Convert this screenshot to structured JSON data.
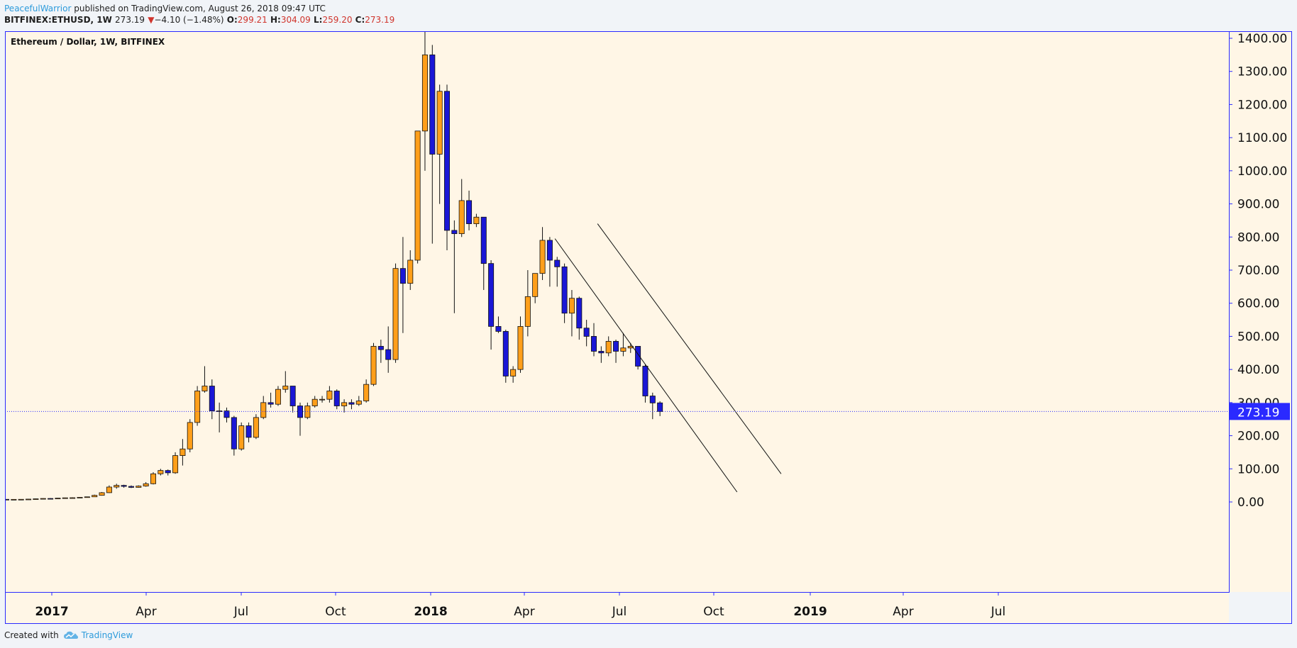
{
  "header": {
    "author": "PeacefulWarrior",
    "published_text": "published on TradingView.com, August 26, 2018 09:47 UTC",
    "symbol": "BITFINEX:ETHUSD, 1W",
    "last": "273.19",
    "change_arrow": "▼",
    "change": "−4.10 (−1.48%)",
    "o_label": "O:",
    "o": "299.21",
    "h_label": "H:",
    "h": "304.09",
    "l_label": "L:",
    "l": "259.20",
    "c_label": "C:",
    "c": "273.19"
  },
  "footer": {
    "created_with": "Created with",
    "brand": "TradingView"
  },
  "chart_data": {
    "type": "candlestick",
    "title": "Ethereum / Dollar, 1W, BITFINEX",
    "ylim": [
      -10,
      1425
    ],
    "y_ticks": [
      0,
      100,
      200,
      300,
      400,
      500,
      600,
      700,
      800,
      900,
      1000,
      1100,
      1200,
      1300,
      1400
    ],
    "y_tick_labels": [
      "0.00",
      "100.00",
      "200.00",
      "300.00",
      "400.00",
      "500.00",
      "600.00",
      "700.00",
      "800.00",
      "900.00",
      "1000.00",
      "1100.00",
      "1200.00",
      "1300.00",
      "1400.00"
    ],
    "x_labels": [
      "2017",
      "Apr",
      "Jul",
      "Oct",
      "2018",
      "Apr",
      "Jul",
      "Oct",
      "2019",
      "Apr",
      "Jul"
    ],
    "x_labels_bold": [
      "2017",
      "2018",
      "2019"
    ],
    "last_price": 273.19,
    "last_price_label": "273.19",
    "colors": {
      "up": "#ff9f1a",
      "down": "#1a17d6",
      "background": "#fff6e6",
      "axis": "#2a2aff",
      "price_line": "#2a2aff"
    },
    "candles": [
      {
        "o": 8,
        "h": 8.5,
        "l": 7,
        "c": 7.5
      },
      {
        "o": 7.5,
        "h": 8,
        "l": 7,
        "c": 7.8
      },
      {
        "o": 7.8,
        "h": 8.5,
        "l": 7.5,
        "c": 8
      },
      {
        "o": 8,
        "h": 9,
        "l": 8,
        "c": 8.6
      },
      {
        "o": 8.6,
        "h": 10,
        "l": 8.3,
        "c": 9.5
      },
      {
        "o": 9.5,
        "h": 11,
        "l": 9.3,
        "c": 10.5
      },
      {
        "o": 10.5,
        "h": 11.5,
        "l": 9,
        "c": 10
      },
      {
        "o": 10,
        "h": 12,
        "l": 9.8,
        "c": 11.5
      },
      {
        "o": 11.5,
        "h": 13,
        "l": 11,
        "c": 12.5
      },
      {
        "o": 12.5,
        "h": 14,
        "l": 12,
        "c": 12.8
      },
      {
        "o": 12.8,
        "h": 15,
        "l": 12.5,
        "c": 14
      },
      {
        "o": 14,
        "h": 16,
        "l": 13.5,
        "c": 15.5
      },
      {
        "o": 15.5,
        "h": 22,
        "l": 15,
        "c": 20
      },
      {
        "o": 20,
        "h": 30,
        "l": 19,
        "c": 28
      },
      {
        "o": 28,
        "h": 50,
        "l": 27,
        "c": 45
      },
      {
        "o": 45,
        "h": 55,
        "l": 40,
        "c": 50
      },
      {
        "o": 50,
        "h": 52,
        "l": 43,
        "c": 47
      },
      {
        "o": 47,
        "h": 50,
        "l": 42,
        "c": 44
      },
      {
        "o": 44,
        "h": 50,
        "l": 43,
        "c": 48
      },
      {
        "o": 48,
        "h": 60,
        "l": 46,
        "c": 55
      },
      {
        "o": 55,
        "h": 90,
        "l": 53,
        "c": 85
      },
      {
        "o": 85,
        "h": 100,
        "l": 80,
        "c": 95
      },
      {
        "o": 95,
        "h": 98,
        "l": 80,
        "c": 88
      },
      {
        "o": 88,
        "h": 150,
        "l": 85,
        "c": 140
      },
      {
        "o": 140,
        "h": 190,
        "l": 110,
        "c": 160
      },
      {
        "o": 160,
        "h": 250,
        "l": 150,
        "c": 240
      },
      {
        "o": 240,
        "h": 350,
        "l": 230,
        "c": 335
      },
      {
        "o": 335,
        "h": 410,
        "l": 330,
        "c": 350
      },
      {
        "o": 350,
        "h": 370,
        "l": 250,
        "c": 275
      },
      {
        "o": 275,
        "h": 300,
        "l": 210,
        "c": 275
      },
      {
        "o": 275,
        "h": 285,
        "l": 240,
        "c": 255
      },
      {
        "o": 255,
        "h": 260,
        "l": 140,
        "c": 160
      },
      {
        "o": 160,
        "h": 240,
        "l": 155,
        "c": 230
      },
      {
        "o": 230,
        "h": 240,
        "l": 180,
        "c": 195
      },
      {
        "o": 195,
        "h": 265,
        "l": 190,
        "c": 255
      },
      {
        "o": 255,
        "h": 320,
        "l": 250,
        "c": 300
      },
      {
        "o": 300,
        "h": 330,
        "l": 285,
        "c": 295
      },
      {
        "o": 295,
        "h": 350,
        "l": 290,
        "c": 340
      },
      {
        "o": 340,
        "h": 395,
        "l": 330,
        "c": 350
      },
      {
        "o": 350,
        "h": 345,
        "l": 270,
        "c": 290
      },
      {
        "o": 290,
        "h": 300,
        "l": 200,
        "c": 255
      },
      {
        "o": 255,
        "h": 300,
        "l": 250,
        "c": 290
      },
      {
        "o": 290,
        "h": 320,
        "l": 285,
        "c": 310
      },
      {
        "o": 310,
        "h": 320,
        "l": 300,
        "c": 310
      },
      {
        "o": 310,
        "h": 350,
        "l": 300,
        "c": 335
      },
      {
        "o": 335,
        "h": 340,
        "l": 280,
        "c": 290
      },
      {
        "o": 290,
        "h": 310,
        "l": 270,
        "c": 300
      },
      {
        "o": 300,
        "h": 310,
        "l": 280,
        "c": 295
      },
      {
        "o": 295,
        "h": 320,
        "l": 290,
        "c": 305
      },
      {
        "o": 305,
        "h": 370,
        "l": 300,
        "c": 355
      },
      {
        "o": 355,
        "h": 480,
        "l": 350,
        "c": 470
      },
      {
        "o": 470,
        "h": 490,
        "l": 420,
        "c": 460
      },
      {
        "o": 460,
        "h": 530,
        "l": 390,
        "c": 430
      },
      {
        "o": 430,
        "h": 720,
        "l": 420,
        "c": 705
      },
      {
        "o": 705,
        "h": 800,
        "l": 510,
        "c": 660
      },
      {
        "o": 660,
        "h": 760,
        "l": 640,
        "c": 730
      },
      {
        "o": 730,
        "h": 1120,
        "l": 720,
        "c": 1120
      },
      {
        "o": 1120,
        "h": 1420,
        "l": 1000,
        "c": 1350
      },
      {
        "o": 1350,
        "h": 1380,
        "l": 780,
        "c": 1050
      },
      {
        "o": 1050,
        "h": 1260,
        "l": 900,
        "c": 1240
      },
      {
        "o": 1240,
        "h": 1260,
        "l": 760,
        "c": 820
      },
      {
        "o": 820,
        "h": 850,
        "l": 570,
        "c": 810
      },
      {
        "o": 810,
        "h": 975,
        "l": 800,
        "c": 910
      },
      {
        "o": 910,
        "h": 940,
        "l": 820,
        "c": 840
      },
      {
        "o": 840,
        "h": 870,
        "l": 830,
        "c": 860
      },
      {
        "o": 860,
        "h": 860,
        "l": 640,
        "c": 720
      },
      {
        "o": 720,
        "h": 730,
        "l": 460,
        "c": 530
      },
      {
        "o": 530,
        "h": 560,
        "l": 510,
        "c": 515
      },
      {
        "o": 515,
        "h": 520,
        "l": 360,
        "c": 380
      },
      {
        "o": 380,
        "h": 410,
        "l": 360,
        "c": 400
      },
      {
        "o": 400,
        "h": 560,
        "l": 390,
        "c": 530
      },
      {
        "o": 530,
        "h": 700,
        "l": 500,
        "c": 620
      },
      {
        "o": 620,
        "h": 690,
        "l": 600,
        "c": 690
      },
      {
        "o": 690,
        "h": 830,
        "l": 670,
        "c": 790
      },
      {
        "o": 790,
        "h": 800,
        "l": 650,
        "c": 730
      },
      {
        "o": 730,
        "h": 740,
        "l": 650,
        "c": 710
      },
      {
        "o": 710,
        "h": 720,
        "l": 540,
        "c": 570
      },
      {
        "o": 570,
        "h": 640,
        "l": 500,
        "c": 615
      },
      {
        "o": 615,
        "h": 620,
        "l": 490,
        "c": 525
      },
      {
        "o": 525,
        "h": 550,
        "l": 470,
        "c": 500
      },
      {
        "o": 500,
        "h": 540,
        "l": 440,
        "c": 455
      },
      {
        "o": 455,
        "h": 470,
        "l": 420,
        "c": 450
      },
      {
        "o": 450,
        "h": 500,
        "l": 440,
        "c": 485
      },
      {
        "o": 485,
        "h": 490,
        "l": 420,
        "c": 455
      },
      {
        "o": 455,
        "h": 510,
        "l": 440,
        "c": 465
      },
      {
        "o": 465,
        "h": 480,
        "l": 450,
        "c": 470
      },
      {
        "o": 470,
        "h": 470,
        "l": 400,
        "c": 410
      },
      {
        "o": 410,
        "h": 415,
        "l": 300,
        "c": 320
      },
      {
        "o": 320,
        "h": 330,
        "l": 250,
        "c": 299
      },
      {
        "o": 299.21,
        "h": 304.09,
        "l": 259.2,
        "c": 273.19
      }
    ],
    "trendlines": [
      {
        "x1_index": 74.7,
        "y1": 795,
        "x2_index": 99.5,
        "y2": 30
      },
      {
        "x1_index": 80.5,
        "y1": 840,
        "x2_index": 105.5,
        "y2": 85
      }
    ]
  }
}
